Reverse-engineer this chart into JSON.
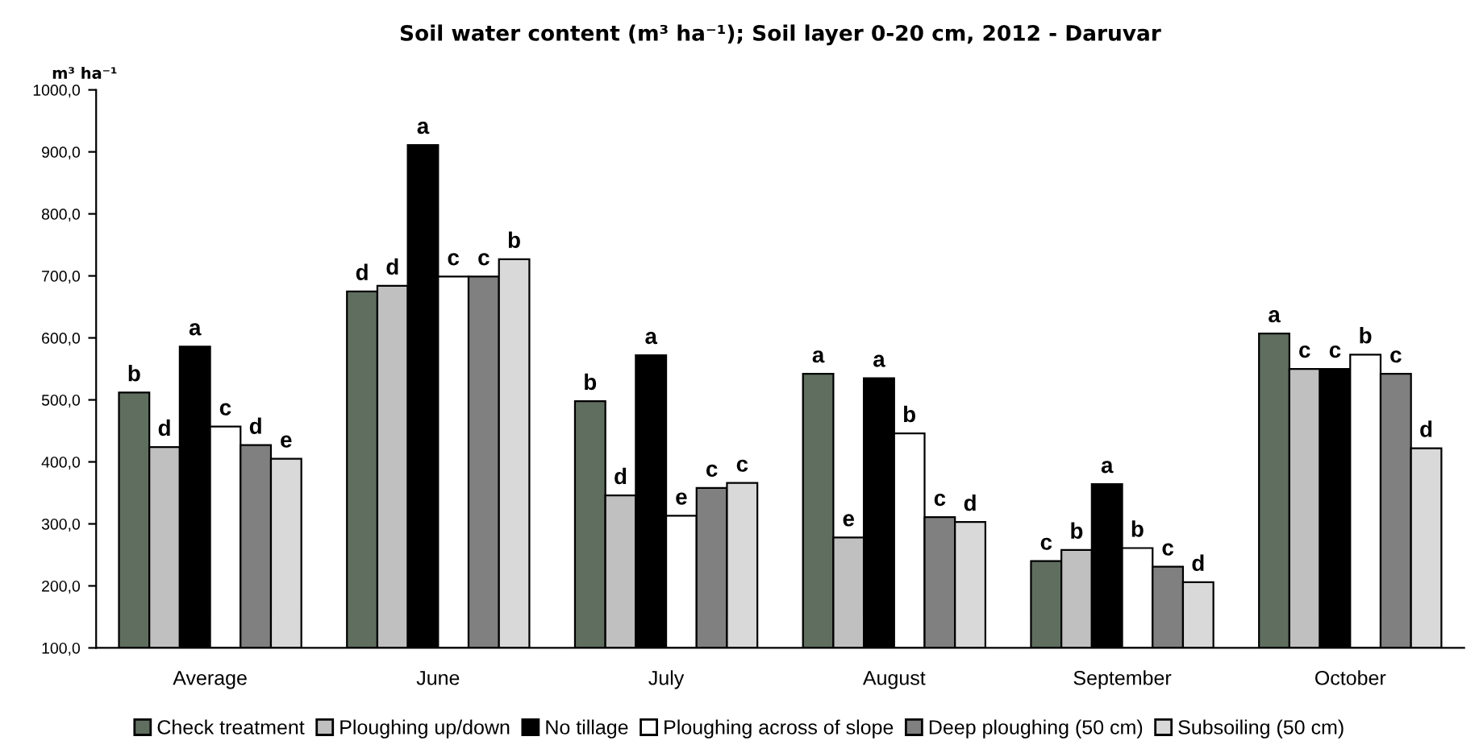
{
  "chart_data": {
    "type": "bar",
    "title": "Soil water content (m³ ha⁻¹); Soil layer 0-20 cm, 2012 - Daruvar",
    "ylabel": "m³ ha⁻¹",
    "categories": [
      "Average",
      "June",
      "July",
      "August",
      "September",
      "October"
    ],
    "series": [
      {
        "name": "Check treatment",
        "color": "#5f6e5f",
        "values": [
          512,
          675,
          498,
          542,
          240,
          607
        ],
        "value_labels": [
          "b",
          "d",
          "b",
          "a",
          "c",
          "a"
        ]
      },
      {
        "name": "Ploughing up/down",
        "color": "#c0c0c0",
        "values": [
          424,
          684,
          346,
          278,
          258,
          550
        ],
        "value_labels": [
          "d",
          "d",
          "d",
          "e",
          "b",
          "c"
        ]
      },
      {
        "name": "No tillage",
        "color": "#000000",
        "values": [
          586,
          911,
          572,
          535,
          364,
          550
        ],
        "value_labels": [
          "a",
          "a",
          "a",
          "a",
          "a",
          "c"
        ]
      },
      {
        "name": "Ploughing across of slope",
        "color": "#ffffff",
        "values": [
          457,
          699,
          313,
          446,
          261,
          573
        ],
        "value_labels": [
          "c",
          "c",
          "e",
          "b",
          "b",
          "b"
        ]
      },
      {
        "name": "Deep ploughing (50 cm)",
        "color": "#808080",
        "values": [
          427,
          699,
          358,
          311,
          231,
          542
        ],
        "value_labels": [
          "d",
          "c",
          "c",
          "c",
          "c",
          "c"
        ]
      },
      {
        "name": "Subsoiling (50 cm)",
        "color": "#d9d9d9",
        "values": [
          405,
          727,
          366,
          303,
          206,
          422
        ],
        "value_labels": [
          "e",
          "b",
          "c",
          "d",
          "d",
          "d"
        ]
      }
    ],
    "ylim": [
      100,
      1000
    ],
    "yticks": [
      {
        "value": 100,
        "label": "100,0"
      },
      {
        "value": 200,
        "label": "200,0"
      },
      {
        "value": 300,
        "label": "300,0"
      },
      {
        "value": 400,
        "label": "400,0"
      },
      {
        "value": 500,
        "label": "500,0"
      },
      {
        "value": 600,
        "label": "600,0"
      },
      {
        "value": 700,
        "label": "700,0"
      },
      {
        "value": 800,
        "label": "800,0"
      },
      {
        "value": 900,
        "label": "900,0"
      },
      {
        "value": 1000,
        "label": "1000,0"
      }
    ],
    "grid": false,
    "legend": "bottom"
  }
}
